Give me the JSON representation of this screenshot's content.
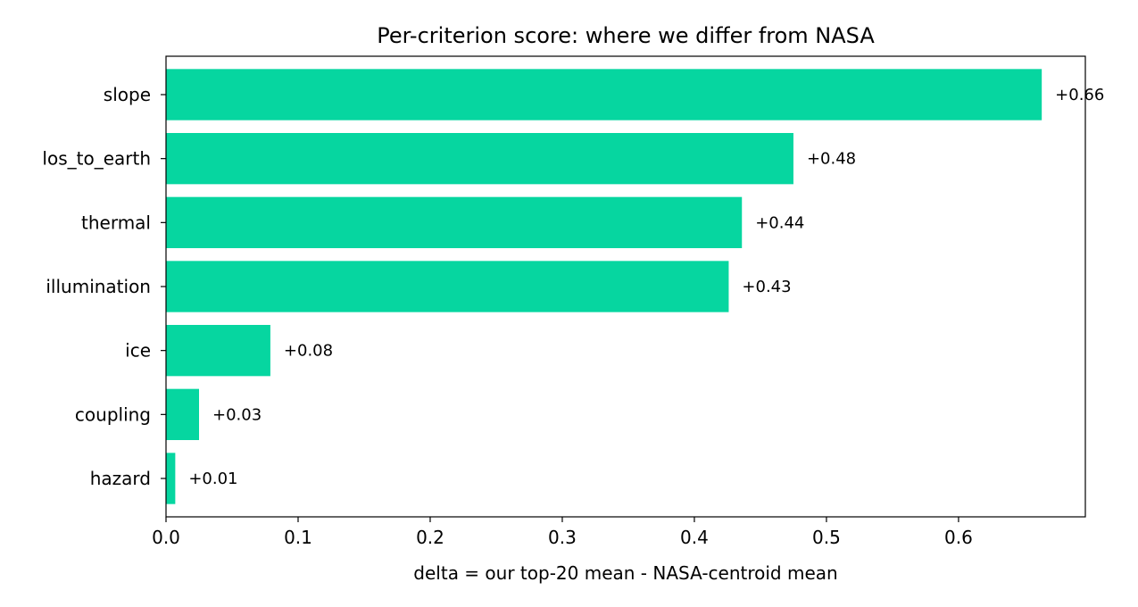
{
  "chart_data": {
    "type": "bar",
    "orientation": "horizontal",
    "title": "Per-criterion score: where we differ from NASA",
    "xlabel": "delta = our top-20 mean - NASA-centroid mean",
    "ylabel": "",
    "categories": [
      "slope",
      "los_to_earth",
      "thermal",
      "illumination",
      "ice",
      "coupling",
      "hazard"
    ],
    "values": [
      0.663,
      0.475,
      0.436,
      0.426,
      0.079,
      0.025,
      0.007
    ],
    "data_labels": [
      "+0.66",
      "+0.48",
      "+0.44",
      "+0.43",
      "+0.08",
      "+0.03",
      "+0.01"
    ],
    "xlim": [
      0,
      0.696
    ],
    "xticks": [
      0.0,
      0.1,
      0.2,
      0.3,
      0.4,
      0.5,
      0.6
    ],
    "xtick_labels": [
      "0.0",
      "0.1",
      "0.2",
      "0.3",
      "0.4",
      "0.5",
      "0.6"
    ],
    "bar_color": "#06d6a0",
    "grid": false,
    "legend": false
  }
}
